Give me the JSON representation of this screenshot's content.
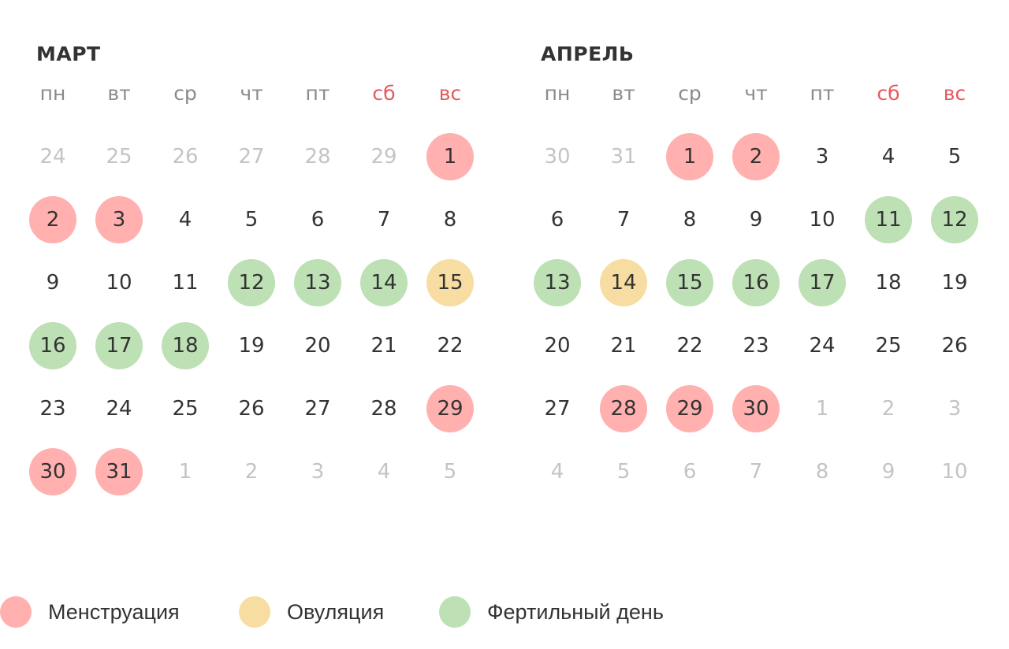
{
  "colors": {
    "menstruation": "#ffb0af",
    "ovulation": "#f8dda2",
    "fertile": "#bde0b5",
    "weekend_label": "#e5595c",
    "weekday_label": "#8a8a8a",
    "day_text": "#333333",
    "outside_day_text": "#c4c4c4"
  },
  "weekdays": [
    {
      "label": "пн",
      "weekend": false
    },
    {
      "label": "вт",
      "weekend": false
    },
    {
      "label": "ср",
      "weekend": false
    },
    {
      "label": "чт",
      "weekend": false
    },
    {
      "label": "пт",
      "weekend": false
    },
    {
      "label": "сб",
      "weekend": true
    },
    {
      "label": "вс",
      "weekend": true
    }
  ],
  "months": [
    {
      "title": "МАРТ",
      "weeks": [
        [
          {
            "d": "24",
            "out": true
          },
          {
            "d": "25",
            "out": true
          },
          {
            "d": "26",
            "out": true
          },
          {
            "d": "27",
            "out": true
          },
          {
            "d": "28",
            "out": true
          },
          {
            "d": "29",
            "out": true
          },
          {
            "d": "1",
            "mark": "menstruation"
          }
        ],
        [
          {
            "d": "2",
            "mark": "menstruation"
          },
          {
            "d": "3",
            "mark": "menstruation"
          },
          {
            "d": "4"
          },
          {
            "d": "5"
          },
          {
            "d": "6"
          },
          {
            "d": "7"
          },
          {
            "d": "8"
          }
        ],
        [
          {
            "d": "9"
          },
          {
            "d": "10"
          },
          {
            "d": "11"
          },
          {
            "d": "12",
            "mark": "fertile"
          },
          {
            "d": "13",
            "mark": "fertile"
          },
          {
            "d": "14",
            "mark": "fertile"
          },
          {
            "d": "15",
            "mark": "ovulation"
          }
        ],
        [
          {
            "d": "16",
            "mark": "fertile"
          },
          {
            "d": "17",
            "mark": "fertile"
          },
          {
            "d": "18",
            "mark": "fertile"
          },
          {
            "d": "19"
          },
          {
            "d": "20"
          },
          {
            "d": "21"
          },
          {
            "d": "22"
          }
        ],
        [
          {
            "d": "23"
          },
          {
            "d": "24"
          },
          {
            "d": "25"
          },
          {
            "d": "26"
          },
          {
            "d": "27"
          },
          {
            "d": "28"
          },
          {
            "d": "29",
            "mark": "menstruation"
          }
        ],
        [
          {
            "d": "30",
            "mark": "menstruation"
          },
          {
            "d": "31",
            "mark": "menstruation"
          },
          {
            "d": "1",
            "out": true
          },
          {
            "d": "2",
            "out": true
          },
          {
            "d": "3",
            "out": true
          },
          {
            "d": "4",
            "out": true
          },
          {
            "d": "5",
            "out": true
          }
        ]
      ]
    },
    {
      "title": "АПРЕЛЬ",
      "weeks": [
        [
          {
            "d": "30",
            "out": true
          },
          {
            "d": "31",
            "out": true
          },
          {
            "d": "1",
            "mark": "menstruation"
          },
          {
            "d": "2",
            "mark": "menstruation"
          },
          {
            "d": "3"
          },
          {
            "d": "4"
          },
          {
            "d": "5"
          }
        ],
        [
          {
            "d": "6"
          },
          {
            "d": "7"
          },
          {
            "d": "8"
          },
          {
            "d": "9"
          },
          {
            "d": "10"
          },
          {
            "d": "11",
            "mark": "fertile"
          },
          {
            "d": "12",
            "mark": "fertile"
          }
        ],
        [
          {
            "d": "13",
            "mark": "fertile"
          },
          {
            "d": "14",
            "mark": "ovulation"
          },
          {
            "d": "15",
            "mark": "fertile"
          },
          {
            "d": "16",
            "mark": "fertile"
          },
          {
            "d": "17",
            "mark": "fertile"
          },
          {
            "d": "18"
          },
          {
            "d": "19"
          }
        ],
        [
          {
            "d": "20"
          },
          {
            "d": "21"
          },
          {
            "d": "22"
          },
          {
            "d": "23"
          },
          {
            "d": "24"
          },
          {
            "d": "25"
          },
          {
            "d": "26"
          }
        ],
        [
          {
            "d": "27"
          },
          {
            "d": "28",
            "mark": "menstruation"
          },
          {
            "d": "29",
            "mark": "menstruation"
          },
          {
            "d": "30",
            "mark": "menstruation"
          },
          {
            "d": "1",
            "out": true
          },
          {
            "d": "2",
            "out": true
          },
          {
            "d": "3",
            "out": true
          }
        ],
        [
          {
            "d": "4",
            "out": true
          },
          {
            "d": "5",
            "out": true
          },
          {
            "d": "6",
            "out": true
          },
          {
            "d": "7",
            "out": true
          },
          {
            "d": "8",
            "out": true
          },
          {
            "d": "9",
            "out": true
          },
          {
            "d": "10",
            "out": true
          }
        ]
      ]
    }
  ],
  "legend": [
    {
      "key": "menstruation",
      "label": "Менструация"
    },
    {
      "key": "ovulation",
      "label": "Овуляция"
    },
    {
      "key": "fertile",
      "label": "Фертильный день"
    }
  ]
}
